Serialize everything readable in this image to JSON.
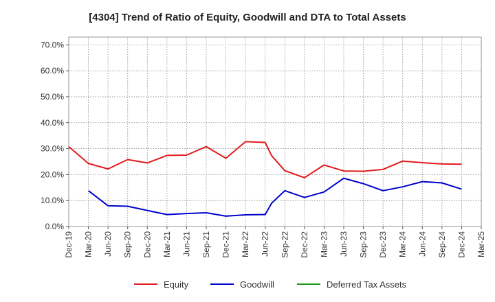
{
  "chart_data": {
    "type": "line",
    "title": "[4304]  Trend of Ratio of Equity, Goodwill and DTA to Total Assets",
    "x_labels": [
      "Dec-19",
      "Mar-20",
      "Jun-20",
      "Sep-20",
      "Dec-20",
      "Mar-21",
      "Jun-21",
      "Sep-21",
      "Dec-21",
      "Mar-22",
      "Jun-22",
      "Sep-22",
      "Dec-22",
      "Mar-23",
      "Jun-23",
      "Sep-23",
      "Dec-23",
      "Mar-24",
      "Jun-24",
      "Sep-24",
      "Dec-24",
      "Mar-25"
    ],
    "y_ticks": [
      "0.0%",
      "10.0%",
      "20.0%",
      "30.0%",
      "40.0%",
      "50.0%",
      "60.0%",
      "70.0%"
    ],
    "ylim": [
      0,
      73
    ],
    "grid": true,
    "legend_position": "bottom",
    "series": [
      {
        "name": "Equity",
        "color": "#e31a1c",
        "points": [
          {
            "x": 0,
            "y": 30.8
          },
          {
            "x": 1,
            "y": 24.3
          },
          {
            "x": 2,
            "y": 22.2
          },
          {
            "x": 3,
            "y": 25.8
          },
          {
            "x": 4,
            "y": 24.5
          },
          {
            "x": 5,
            "y": 27.4
          },
          {
            "x": 6,
            "y": 27.5
          },
          {
            "x": 7,
            "y": 30.8
          },
          {
            "x": 8,
            "y": 26.3
          },
          {
            "x": 9,
            "y": 32.7
          },
          {
            "x": 10,
            "y": 32.4
          },
          {
            "x": 10.33,
            "y": 27.3
          },
          {
            "x": 11,
            "y": 21.5
          },
          {
            "x": 12,
            "y": 18.8
          },
          {
            "x": 13,
            "y": 23.7
          },
          {
            "x": 14,
            "y": 21.4
          },
          {
            "x": 15,
            "y": 21.3
          },
          {
            "x": 16,
            "y": 22.0
          },
          {
            "x": 17,
            "y": 25.2
          },
          {
            "x": 18,
            "y": 24.6
          },
          {
            "x": 19,
            "y": 24.1
          },
          {
            "x": 20,
            "y": 24.0
          }
        ]
      },
      {
        "name": "Goodwill",
        "color": "#0000cc",
        "points": [
          {
            "x": 1,
            "y": 13.8
          },
          {
            "x": 2,
            "y": 8.0
          },
          {
            "x": 3,
            "y": 7.8
          },
          {
            "x": 4,
            "y": 6.2
          },
          {
            "x": 5,
            "y": 4.6
          },
          {
            "x": 6,
            "y": 5.0
          },
          {
            "x": 7,
            "y": 5.3
          },
          {
            "x": 8,
            "y": 4.0
          },
          {
            "x": 9,
            "y": 4.5
          },
          {
            "x": 10,
            "y": 4.6
          },
          {
            "x": 10.33,
            "y": 9.0
          },
          {
            "x": 11,
            "y": 13.8
          },
          {
            "x": 12,
            "y": 11.2
          },
          {
            "x": 13,
            "y": 13.3
          },
          {
            "x": 14,
            "y": 18.6
          },
          {
            "x": 15,
            "y": 16.5
          },
          {
            "x": 16,
            "y": 13.8
          },
          {
            "x": 17,
            "y": 15.3
          },
          {
            "x": 18,
            "y": 17.3
          },
          {
            "x": 19,
            "y": 16.8
          },
          {
            "x": 20,
            "y": 14.4
          }
        ]
      },
      {
        "name": "Deferred Tax Assets",
        "color": "#1a9a1a",
        "points": []
      }
    ]
  }
}
